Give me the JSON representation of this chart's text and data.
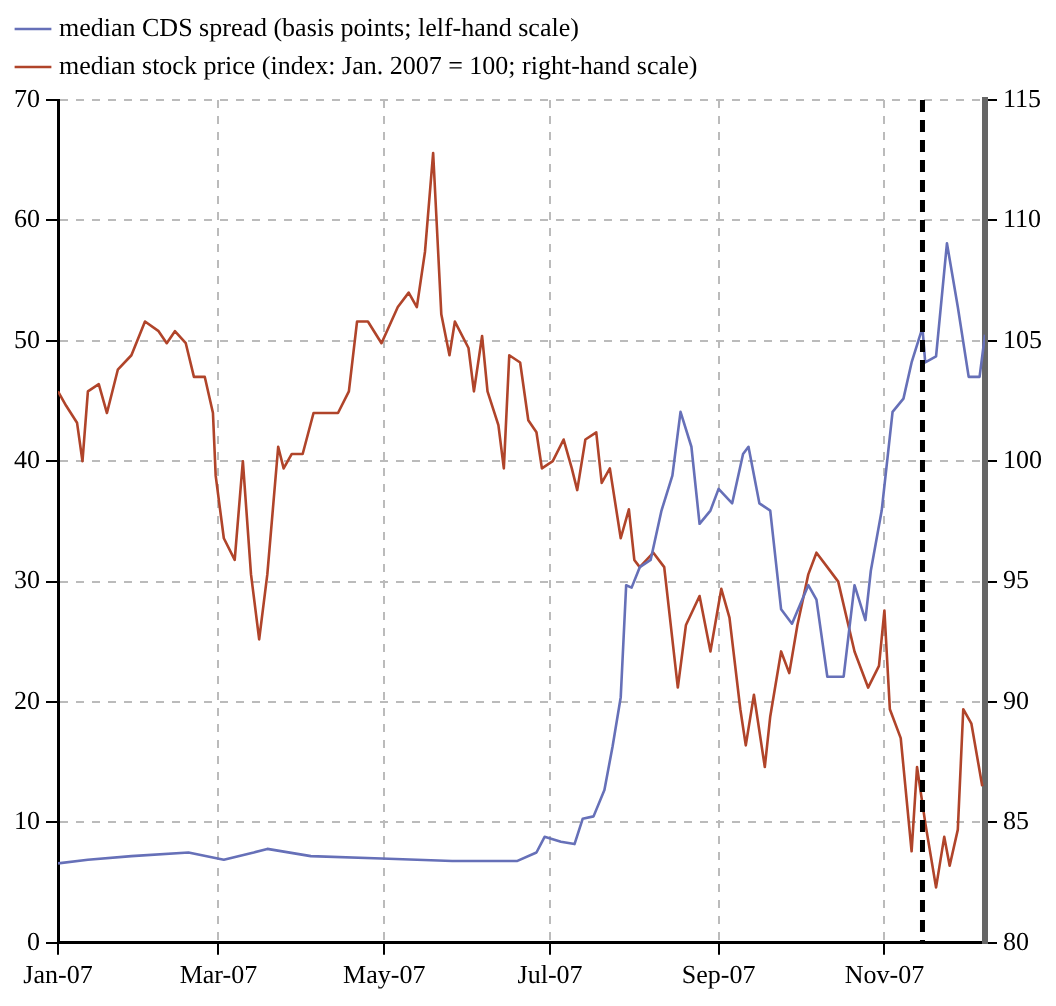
{
  "chart_data": {
    "type": "line",
    "legend": "top",
    "grid": true,
    "xlim": [
      "2007-01-01",
      "2007-12-08"
    ],
    "xticks": [
      {
        "value": "2007-01-01",
        "label": "Jan-07"
      },
      {
        "value": "2007-03-01",
        "label": "Mar-07"
      },
      {
        "value": "2007-05-01",
        "label": "May-07"
      },
      {
        "value": "2007-07-01",
        "label": "Jul-07"
      },
      {
        "value": "2007-09-01",
        "label": "Sep-07"
      },
      {
        "value": "2007-11-01",
        "label": "Nov-07"
      }
    ],
    "ylim": [
      0,
      70
    ],
    "yticks": [
      0,
      10,
      20,
      30,
      40,
      50,
      60,
      70
    ],
    "y2lim": [
      80,
      115
    ],
    "y2ticks": [
      80,
      85,
      90,
      95,
      100,
      105,
      110,
      115
    ],
    "ref_lines": [
      {
        "axis": "x",
        "value": "2007-11-15",
        "label": null,
        "color": "#000000",
        "line_style": "dashed"
      }
    ],
    "series": [
      {
        "name": "median CDS spread (basis points; lelf-hand scale)",
        "color": "#6670b8",
        "axis": "y",
        "x": [
          "2007-01-01",
          "2007-01-12",
          "2007-01-28",
          "2007-02-18",
          "2007-03-03",
          "2007-03-14",
          "2007-03-19",
          "2007-04-04",
          "2007-04-30",
          "2007-05-26",
          "2007-06-19",
          "2007-06-26",
          "2007-06-29",
          "2007-07-05",
          "2007-07-10",
          "2007-07-13",
          "2007-07-17",
          "2007-07-21",
          "2007-07-24",
          "2007-07-27",
          "2007-07-29",
          "2007-07-31",
          "2007-08-03",
          "2007-08-07",
          "2007-08-11",
          "2007-08-15",
          "2007-08-18",
          "2007-08-22",
          "2007-08-25",
          "2007-08-29",
          "2007-09-01",
          "2007-09-06",
          "2007-09-10",
          "2007-09-12",
          "2007-09-16",
          "2007-09-20",
          "2007-09-24",
          "2007-09-28",
          "2007-10-04",
          "2007-10-07",
          "2007-10-11",
          "2007-10-17",
          "2007-10-21",
          "2007-10-25",
          "2007-10-27",
          "2007-10-31",
          "2007-11-04",
          "2007-11-08",
          "2007-11-11",
          "2007-11-15",
          "2007-11-16",
          "2007-11-20",
          "2007-11-24",
          "2007-11-28",
          "2007-12-02",
          "2007-12-06",
          "2007-12-08"
        ],
        "values": [
          6.6,
          6.9,
          7.2,
          7.5,
          6.9,
          7.5,
          7.8,
          7.2,
          7.0,
          6.8,
          6.8,
          7.5,
          8.8,
          8.4,
          8.2,
          10.3,
          10.5,
          12.7,
          16.3,
          20.4,
          29.7,
          29.5,
          31.2,
          31.8,
          35.9,
          38.8,
          44.1,
          41.2,
          34.8,
          35.9,
          37.7,
          36.5,
          40.6,
          41.2,
          36.5,
          35.9,
          27.7,
          26.5,
          29.7,
          28.5,
          22.1,
          22.1,
          29.7,
          26.8,
          30.9,
          35.9,
          44.1,
          45.2,
          48.2,
          51.1,
          48.2,
          48.7,
          58.1,
          52.8,
          47.0,
          47.0,
          50.5
        ]
      },
      {
        "name": "median stock price (index: Jan. 2007 = 100; right-hand scale)",
        "color": "#b0442a",
        "axis": "y2",
        "x": [
          "2007-01-01",
          "2007-01-04",
          "2007-01-08",
          "2007-01-10",
          "2007-01-12",
          "2007-01-16",
          "2007-01-19",
          "2007-01-23",
          "2007-01-28",
          "2007-02-02",
          "2007-02-07",
          "2007-02-10",
          "2007-02-13",
          "2007-02-17",
          "2007-02-20",
          "2007-02-24",
          "2007-02-27",
          "2007-02-28",
          "2007-03-03",
          "2007-03-07",
          "2007-03-10",
          "2007-03-13",
          "2007-03-16",
          "2007-03-19",
          "2007-03-23",
          "2007-03-25",
          "2007-03-28",
          "2007-04-01",
          "2007-04-05",
          "2007-04-09",
          "2007-04-14",
          "2007-04-18",
          "2007-04-21",
          "2007-04-25",
          "2007-04-30",
          "2007-05-06",
          "2007-05-10",
          "2007-05-13",
          "2007-05-16",
          "2007-05-19",
          "2007-05-22",
          "2007-05-25",
          "2007-05-27",
          "2007-06-01",
          "2007-06-03",
          "2007-06-06",
          "2007-06-08",
          "2007-06-12",
          "2007-06-14",
          "2007-06-16",
          "2007-06-20",
          "2007-06-23",
          "2007-06-26",
          "2007-06-28",
          "2007-07-02",
          "2007-07-06",
          "2007-07-09",
          "2007-07-11",
          "2007-07-14",
          "2007-07-18",
          "2007-07-20",
          "2007-07-23",
          "2007-07-27",
          "2007-07-30",
          "2007-08-01",
          "2007-08-03",
          "2007-08-08",
          "2007-08-12",
          "2007-08-17",
          "2007-08-20",
          "2007-08-25",
          "2007-08-29",
          "2007-09-02",
          "2007-09-05",
          "2007-09-09",
          "2007-09-11",
          "2007-09-14",
          "2007-09-18",
          "2007-09-20",
          "2007-09-24",
          "2007-09-27",
          "2007-09-30",
          "2007-10-04",
          "2007-10-07",
          "2007-10-11",
          "2007-10-15",
          "2007-10-21",
          "2007-10-26",
          "2007-10-30",
          "2007-11-01",
          "2007-11-03",
          "2007-11-07",
          "2007-11-11",
          "2007-11-13",
          "2007-11-16",
          "2007-11-20",
          "2007-11-23",
          "2007-11-25",
          "2007-11-28",
          "2007-11-30",
          "2007-12-03",
          "2007-12-07"
        ],
        "values": [
          102.9,
          102.3,
          101.6,
          100.0,
          102.9,
          103.2,
          102.0,
          103.8,
          104.4,
          105.8,
          105.4,
          104.9,
          105.4,
          104.9,
          103.5,
          103.5,
          102.0,
          99.4,
          96.8,
          95.9,
          100.0,
          95.3,
          92.6,
          95.3,
          100.6,
          99.7,
          100.3,
          100.3,
          102.0,
          102.0,
          102.0,
          102.9,
          105.8,
          105.8,
          104.9,
          106.4,
          107.0,
          106.4,
          108.7,
          112.8,
          106.1,
          104.4,
          105.8,
          104.7,
          102.9,
          105.2,
          102.9,
          101.5,
          99.7,
          104.4,
          104.1,
          101.7,
          101.2,
          99.7,
          100.0,
          100.9,
          99.7,
          98.8,
          100.9,
          101.2,
          99.1,
          99.7,
          96.8,
          98.0,
          95.9,
          95.6,
          96.2,
          95.6,
          90.6,
          93.2,
          94.4,
          92.1,
          94.7,
          93.5,
          89.7,
          88.2,
          90.3,
          87.3,
          89.4,
          92.1,
          91.2,
          93.2,
          95.3,
          96.2,
          95.6,
          95.0,
          92.1,
          90.6,
          91.5,
          93.8,
          89.7,
          88.5,
          83.8,
          87.3,
          85.0,
          82.3,
          84.4,
          83.2,
          84.7,
          89.7,
          89.1,
          86.5
        ]
      }
    ]
  }
}
